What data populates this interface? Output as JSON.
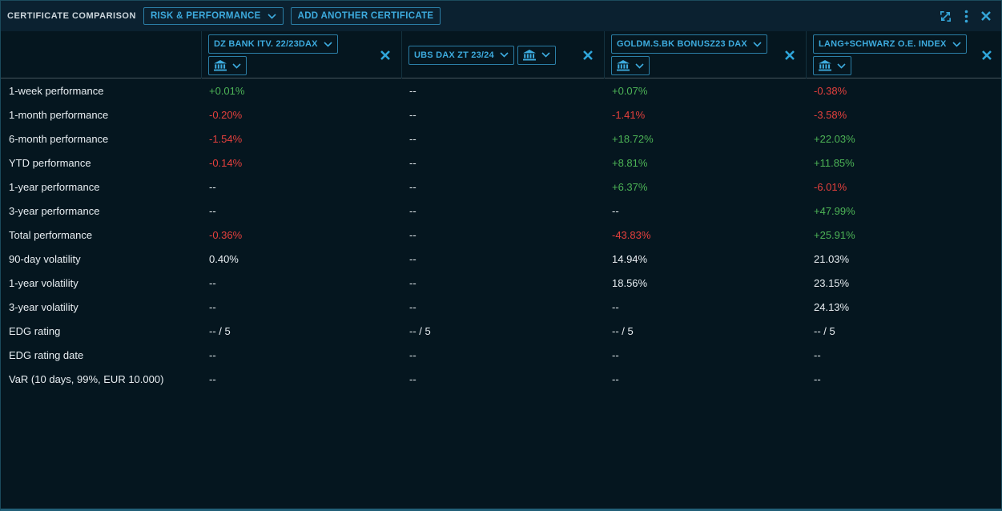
{
  "titlebar": {
    "title": "CERTIFICATE COMPARISON",
    "view_dropdown_label": "RISK & PERFORMANCE",
    "add_certificate_label": "ADD ANOTHER CERTIFICATE"
  },
  "icons": {
    "titlebar": [
      "expand-icon",
      "kebab-menu-icon",
      "close-icon"
    ],
    "per_certificate": [
      "chevron-down-icon",
      "bank-icon",
      "close-icon"
    ]
  },
  "colors": {
    "accent_cyan": "#3dabde",
    "positive_green": "#4db456",
    "negative_red": "#e5403d",
    "text_white": "#e8eef2",
    "background": "#05161f",
    "titlebar_background": "#0b2130"
  },
  "certificates": [
    {
      "name": "DZ BANK ITV. 22/23DAX"
    },
    {
      "name": "UBS DAX ZT 23/24"
    },
    {
      "name": "GOLDM.S.BK BONUSZ23 DAX"
    },
    {
      "name": "LANG+SCHWARZ O.E. INDEX"
    }
  ],
  "metrics": [
    {
      "label": "1-week performance",
      "values": [
        {
          "text": "+0.01%",
          "tone": "pos"
        },
        {
          "text": "--",
          "tone": "neu"
        },
        {
          "text": "+0.07%",
          "tone": "pos"
        },
        {
          "text": "-0.38%",
          "tone": "neg"
        }
      ]
    },
    {
      "label": "1-month performance",
      "values": [
        {
          "text": "-0.20%",
          "tone": "neg"
        },
        {
          "text": "--",
          "tone": "neu"
        },
        {
          "text": "-1.41%",
          "tone": "neg"
        },
        {
          "text": "-3.58%",
          "tone": "neg"
        }
      ]
    },
    {
      "label": "6-month performance",
      "values": [
        {
          "text": "-1.54%",
          "tone": "neg"
        },
        {
          "text": "--",
          "tone": "neu"
        },
        {
          "text": "+18.72%",
          "tone": "pos"
        },
        {
          "text": "+22.03%",
          "tone": "pos"
        }
      ]
    },
    {
      "label": "YTD performance",
      "values": [
        {
          "text": "-0.14%",
          "tone": "neg"
        },
        {
          "text": "--",
          "tone": "neu"
        },
        {
          "text": "+8.81%",
          "tone": "pos"
        },
        {
          "text": "+11.85%",
          "tone": "pos"
        }
      ]
    },
    {
      "label": "1-year performance",
      "values": [
        {
          "text": "--",
          "tone": "neu"
        },
        {
          "text": "--",
          "tone": "neu"
        },
        {
          "text": "+6.37%",
          "tone": "pos"
        },
        {
          "text": "-6.01%",
          "tone": "neg"
        }
      ]
    },
    {
      "label": "3-year performance",
      "values": [
        {
          "text": "--",
          "tone": "neu"
        },
        {
          "text": "--",
          "tone": "neu"
        },
        {
          "text": "--",
          "tone": "neu"
        },
        {
          "text": "+47.99%",
          "tone": "pos"
        }
      ]
    },
    {
      "label": "Total performance",
      "values": [
        {
          "text": "-0.36%",
          "tone": "neg"
        },
        {
          "text": "--",
          "tone": "neu"
        },
        {
          "text": "-43.83%",
          "tone": "neg"
        },
        {
          "text": "+25.91%",
          "tone": "pos"
        }
      ]
    },
    {
      "label": "90-day volatility",
      "values": [
        {
          "text": "0.40%",
          "tone": "neu"
        },
        {
          "text": "--",
          "tone": "neu"
        },
        {
          "text": "14.94%",
          "tone": "neu"
        },
        {
          "text": "21.03%",
          "tone": "neu"
        }
      ]
    },
    {
      "label": "1-year volatility",
      "values": [
        {
          "text": "--",
          "tone": "neu"
        },
        {
          "text": "--",
          "tone": "neu"
        },
        {
          "text": "18.56%",
          "tone": "neu"
        },
        {
          "text": "23.15%",
          "tone": "neu"
        }
      ]
    },
    {
      "label": "3-year volatility",
      "values": [
        {
          "text": "--",
          "tone": "neu"
        },
        {
          "text": "--",
          "tone": "neu"
        },
        {
          "text": "--",
          "tone": "neu"
        },
        {
          "text": "24.13%",
          "tone": "neu"
        }
      ]
    },
    {
      "label": "EDG rating",
      "values": [
        {
          "text": "-- / 5",
          "tone": "neu"
        },
        {
          "text": "-- / 5",
          "tone": "neu"
        },
        {
          "text": "-- / 5",
          "tone": "neu"
        },
        {
          "text": "-- / 5",
          "tone": "neu"
        }
      ]
    },
    {
      "label": "EDG rating date",
      "values": [
        {
          "text": "--",
          "tone": "neu"
        },
        {
          "text": "--",
          "tone": "neu"
        },
        {
          "text": "--",
          "tone": "neu"
        },
        {
          "text": "--",
          "tone": "neu"
        }
      ]
    },
    {
      "label": "VaR (10 days, 99%, EUR 10.000)",
      "values": [
        {
          "text": "--",
          "tone": "neu"
        },
        {
          "text": "--",
          "tone": "neu"
        },
        {
          "text": "--",
          "tone": "neu"
        },
        {
          "text": "--",
          "tone": "neu"
        }
      ]
    }
  ]
}
